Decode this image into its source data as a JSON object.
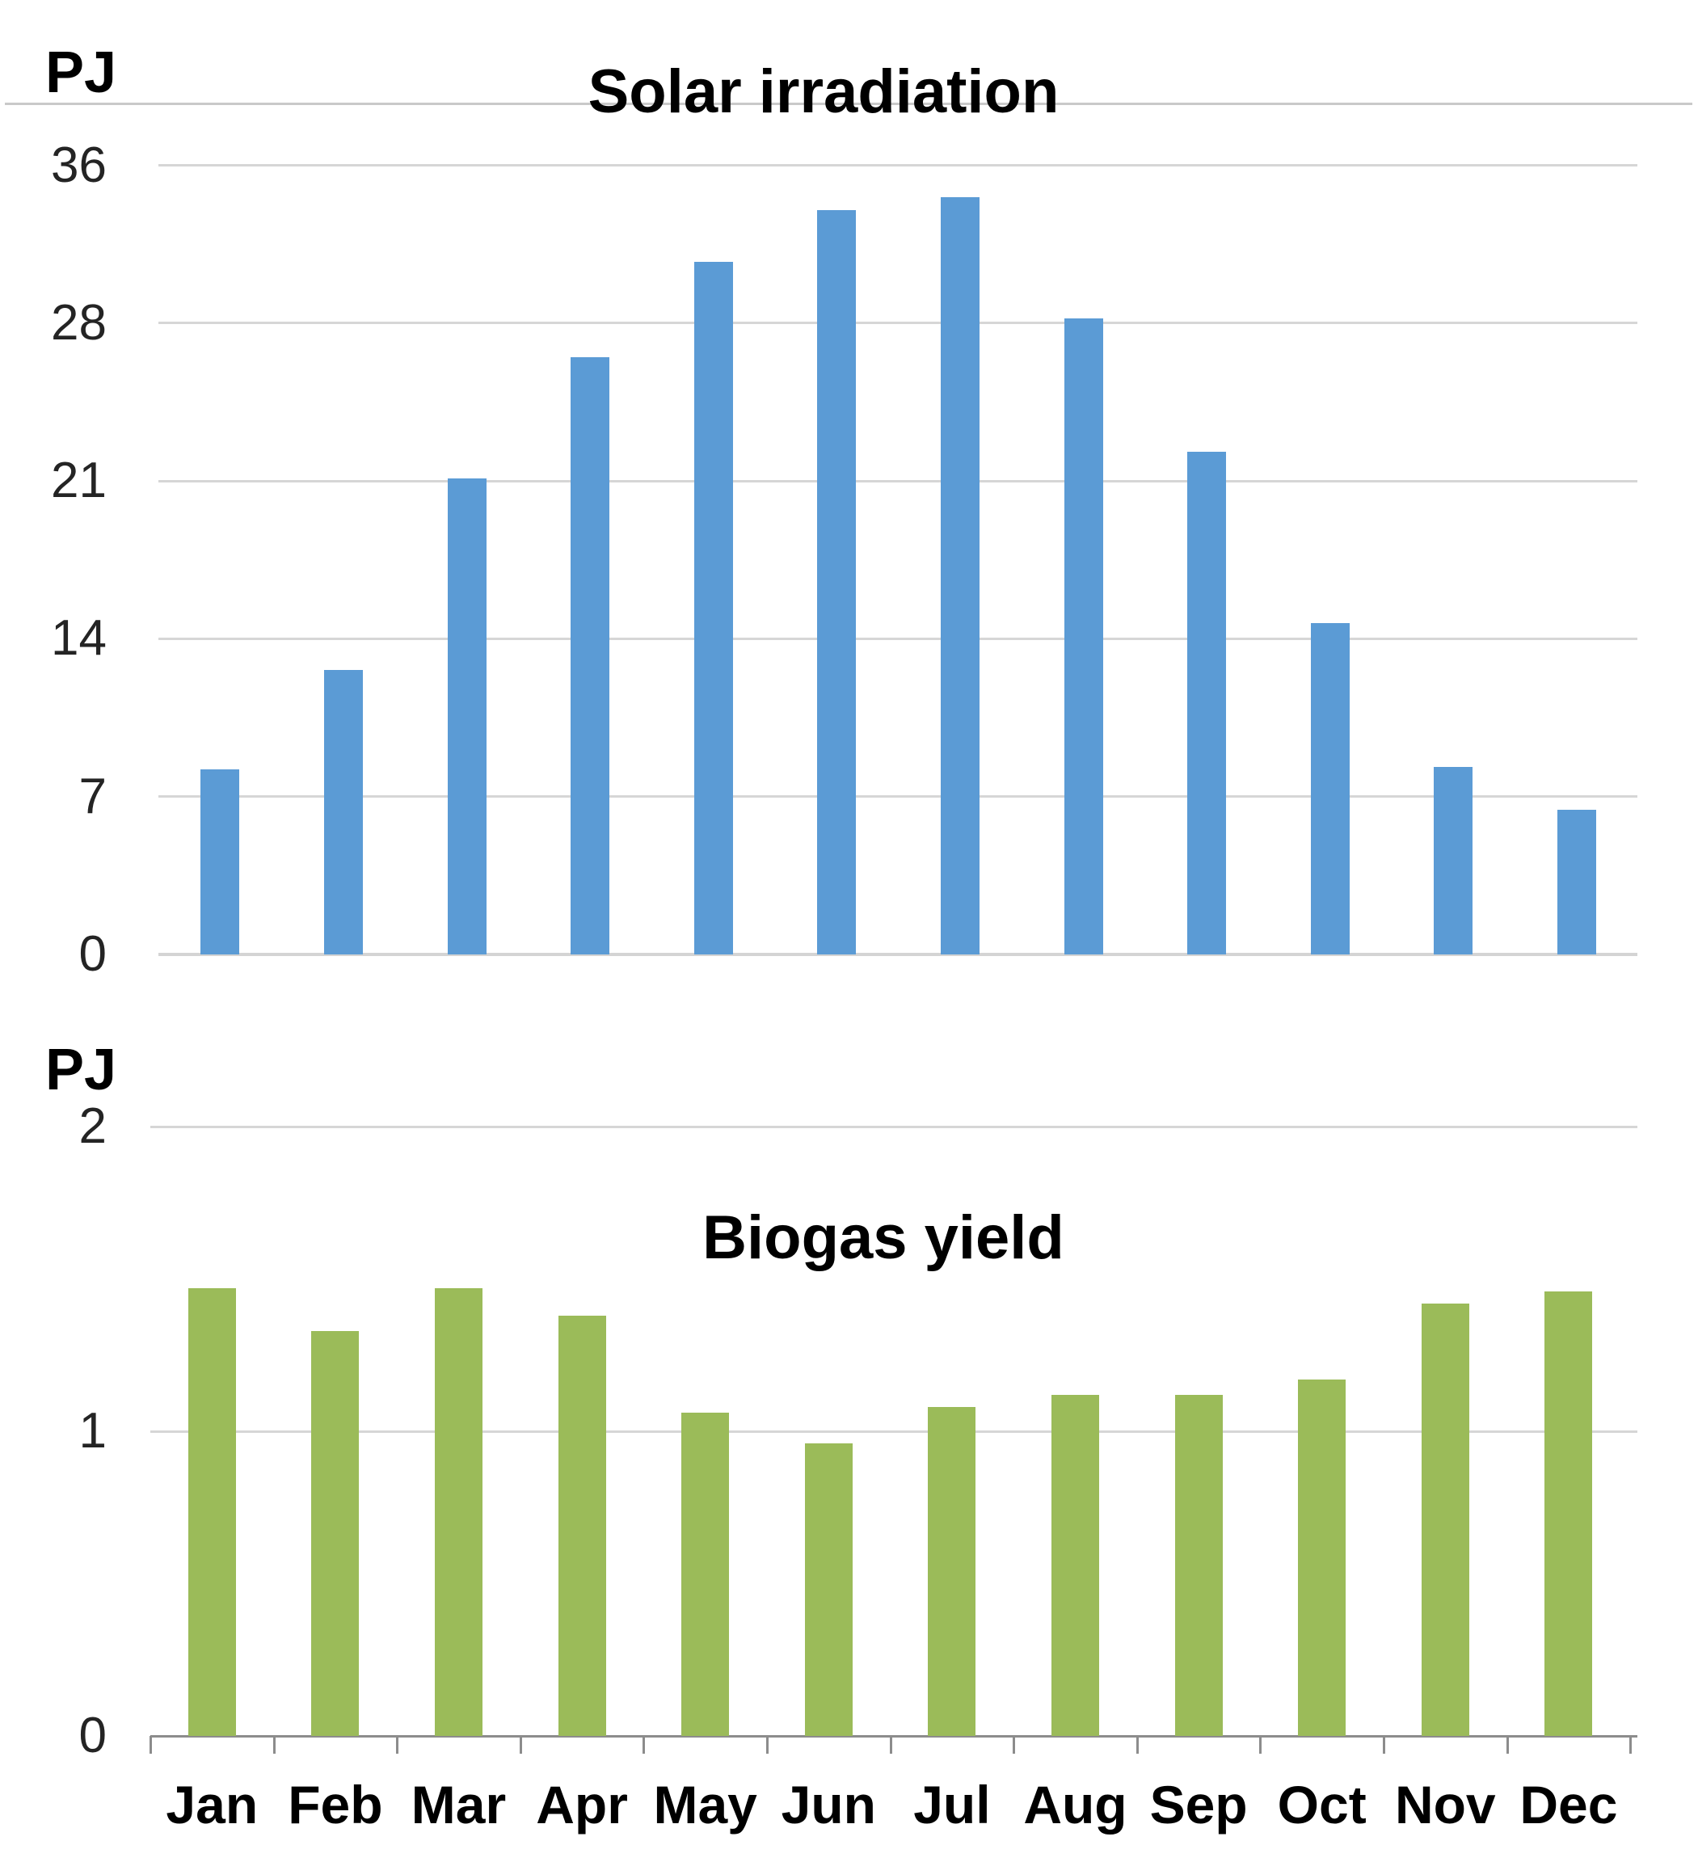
{
  "chart_data": [
    {
      "type": "bar",
      "title": "Solar irradiation",
      "ylabel": "PJ",
      "xlabel": "",
      "categories": [
        "Jan",
        "Feb",
        "Mar",
        "Apr",
        "May",
        "Jun",
        "Jul",
        "Aug",
        "Sep",
        "Oct",
        "Nov",
        "Dec"
      ],
      "values": [
        8.2,
        12.6,
        21.1,
        26.5,
        30.7,
        33.0,
        33.6,
        28.2,
        22.3,
        14.7,
        8.3,
        6.4
      ],
      "ytick_labels": [
        "0",
        "7",
        "14",
        "21",
        "28",
        "36"
      ],
      "ylim": [
        0,
        35
      ],
      "grid": true,
      "legend": false,
      "bar_color": "#5B9BD5",
      "x_axis_labels_shown": false
    },
    {
      "type": "bar",
      "title": "Biogas yield",
      "ylabel": "PJ",
      "xlabel": "",
      "categories": [
        "Jan",
        "Feb",
        "Mar",
        "Apr",
        "May",
        "Jun",
        "Jul",
        "Aug",
        "Sep",
        "Oct",
        "Nov",
        "Dec"
      ],
      "values": [
        1.47,
        1.33,
        1.47,
        1.38,
        1.06,
        0.96,
        1.08,
        1.12,
        1.12,
        1.17,
        1.42,
        1.46
      ],
      "ytick_labels": [
        "0",
        "1",
        "2"
      ],
      "ylim": [
        0,
        2
      ],
      "grid": true,
      "legend": false,
      "bar_color": "#9BBB59",
      "x_axis_labels_shown": true
    }
  ],
  "colors": {
    "gridline": "#D6D6D6",
    "axis": "#8C8C8C",
    "top_rule": "#C9C9C9",
    "tick_text": "#242424",
    "text": "#000000",
    "background": "#FFFFFF"
  }
}
